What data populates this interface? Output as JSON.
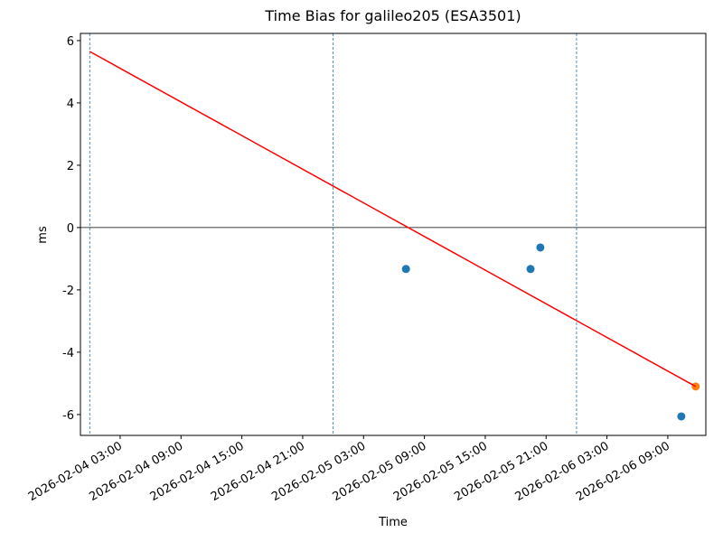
{
  "chart_data": {
    "type": "scatter",
    "title": "Time Bias for galileo205 (ESA3501)",
    "x_label": "Time",
    "y_label": "ms",
    "xlim": [
      "2026-02-03 23:05",
      "2026-02-06 12:45"
    ],
    "xticks": [
      "2026-02-04 03:00",
      "2026-02-04 09:00",
      "2026-02-04 15:00",
      "2026-02-04 21:00",
      "2026-02-05 03:00",
      "2026-02-05 09:00",
      "2026-02-05 15:00",
      "2026-02-05 21:00",
      "2026-02-06 03:00",
      "2026-02-06 09:00"
    ],
    "ylim": [
      -6.67,
      6.23
    ],
    "yticks": [
      -6,
      -4,
      -2,
      0,
      2,
      4,
      6
    ],
    "hline": 0,
    "hline_color": "#000000",
    "vlines": [
      "2026-02-04 00:00",
      "2026-02-05 00:00",
      "2026-02-06 00:00"
    ],
    "vline_color": "#1f77b4",
    "series": [
      {
        "kind": "points",
        "color": "#1f77b4",
        "x": [
          "2026-02-05 07:11",
          "2026-02-05 19:28",
          "2026-02-05 20:26",
          "2026-02-06 10:20"
        ],
        "values": [
          -1.33,
          -1.33,
          -0.64,
          -6.06
        ]
      },
      {
        "kind": "points",
        "color": "#ff7f0e",
        "x": [
          "2026-02-06 11:45"
        ],
        "values": [
          -5.1
        ]
      },
      {
        "kind": "line",
        "color": "#ff0000",
        "x": [
          "2026-02-04 00:00",
          "2026-02-06 11:45"
        ],
        "values": [
          5.65,
          -5.1
        ]
      }
    ]
  }
}
